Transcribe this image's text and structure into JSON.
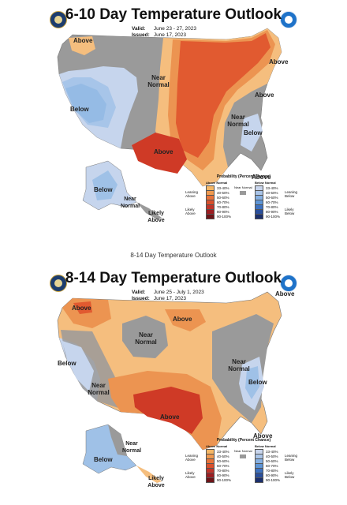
{
  "caption": "8-14 Day Temperature Outlook",
  "legend_common": {
    "title": "Probability (Percent Chance)",
    "above_header": "Above Normal",
    "below_header": "Below Normal",
    "near_label": "Near Normal",
    "leaning_above": "Leaning Above",
    "likely_above": "Likely Above",
    "leaning_below": "Leaning Below",
    "likely_below": "Likely Below",
    "above_ranges": [
      "33-40%",
      "40-50%",
      "50-60%",
      "60-70%",
      "70-80%",
      "80-90%",
      "90-100%"
    ],
    "below_ranges": [
      "33-40%",
      "40-50%",
      "50-60%",
      "60-70%",
      "70-80%",
      "80-90%",
      "90-100%"
    ],
    "above_colors": [
      "#f6b766",
      "#f09a4f",
      "#e8733a",
      "#d9502c",
      "#c0342a",
      "#9c1e22",
      "#6e1418"
    ],
    "below_colors": [
      "#c8d5ec",
      "#a9c4e8",
      "#86b0e2",
      "#5e95d6",
      "#3d71c0",
      "#2a4f9c",
      "#1b2f6c"
    ],
    "near_color": "#999999"
  },
  "colors": {
    "above_light": "#f5be7e",
    "above_mid": "#ec9451",
    "above_strong": "#e15a30",
    "above_core": "#cf3a26",
    "below_light": "#c6d5ed",
    "below_mid": "#9fc1e7",
    "below_strong": "#6fa4dc",
    "near": "#9a9a9a"
  },
  "panels": [
    {
      "title": "6-10 Day Temperature Outlook",
      "valid_label": "Valid:",
      "valid_value": "June 23 - 27, 2023",
      "issued_label": "Issued:",
      "issued_value": "June 17, 2023",
      "labels": {
        "above_nw": "Above",
        "near_normal_north": "Near Normal",
        "below_west": "Below",
        "above_southcentral": "Above",
        "above_northeast": "Above",
        "above_midatlantic": "Above",
        "near_normal_east": "Near Normal",
        "below_southeast": "Below",
        "above_florida": "Above",
        "below_alaska": "Below",
        "near_normal_alaska": "Near Normal",
        "likely_above_alaska": "Likely Above"
      }
    },
    {
      "title": "8-14 Day Temperature Outlook",
      "valid_label": "Valid:",
      "valid_value": "June 25 - July 1, 2023",
      "issued_label": "Issued:",
      "issued_value": "June 17, 2023",
      "labels": {
        "above_northplains": "Above",
        "above_greatlakes": "Above",
        "above_northeast": "Above",
        "near_normal_central": "Near Normal",
        "below_west": "Below",
        "near_normal_sw": "Near Normal",
        "near_normal_east": "Near Normal",
        "below_southeast": "Below",
        "above_south": "Above",
        "above_florida": "Above",
        "below_alaska": "Below",
        "near_normal_alaska": "Near Normal",
        "likely_above_alaska": "Likely Above"
      }
    }
  ]
}
